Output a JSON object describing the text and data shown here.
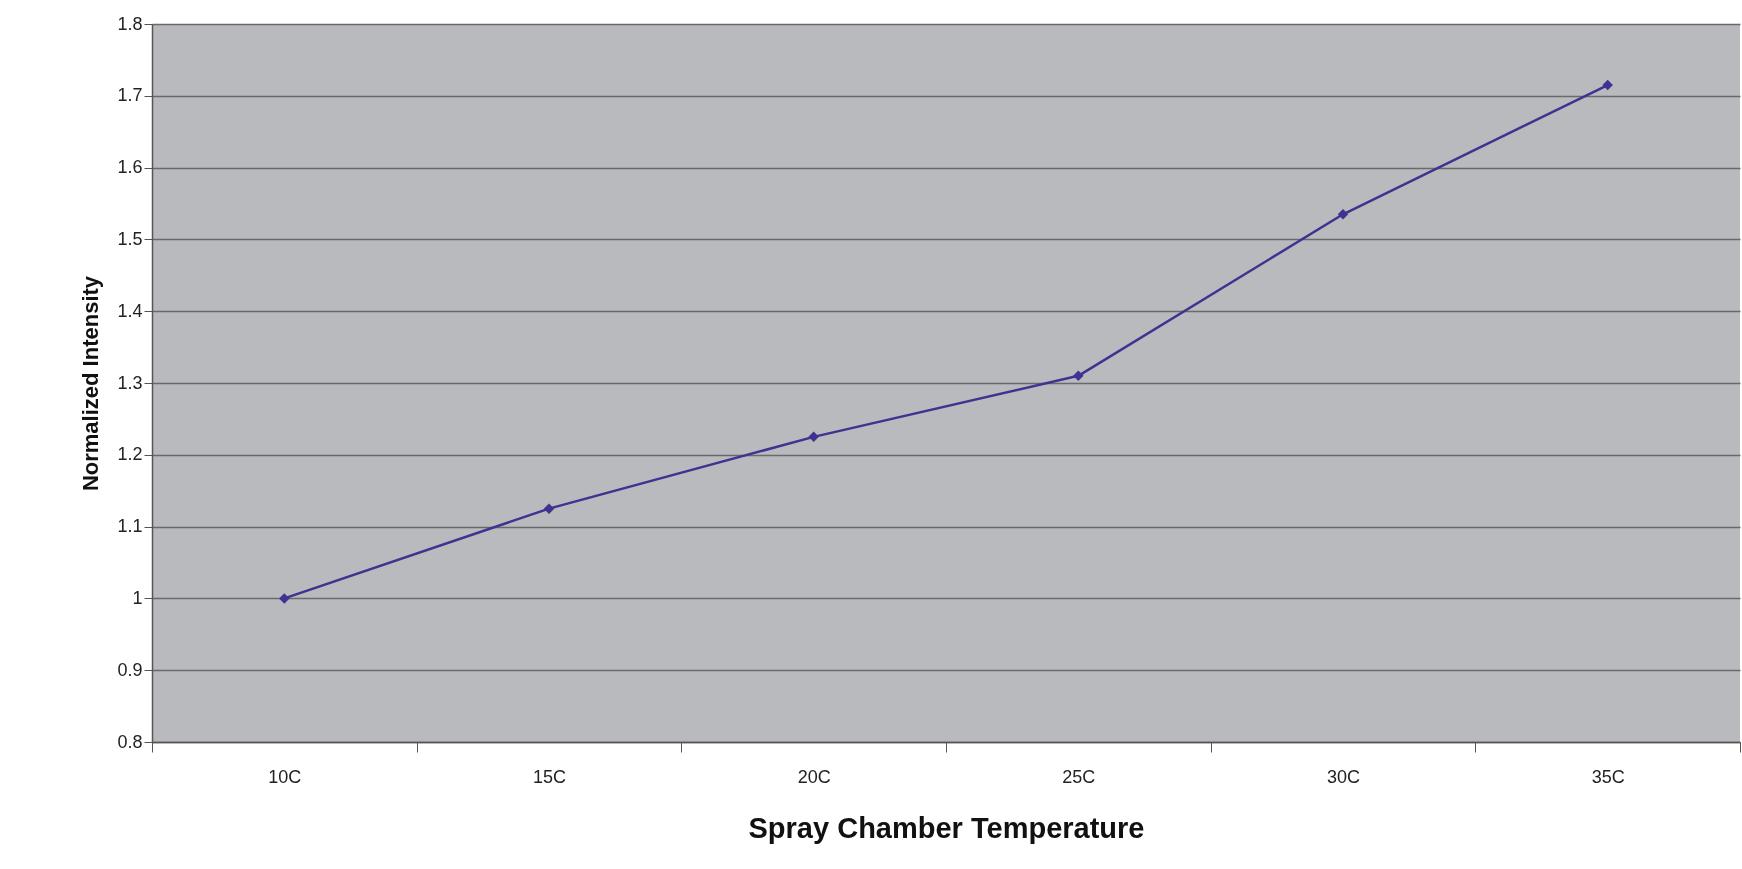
{
  "chart_data": {
    "type": "line",
    "xlabel": "Spray Chamber Temperature",
    "ylabel": "Normalized Intensity",
    "categories": [
      "10C",
      "15C",
      "20C",
      "25C",
      "30C",
      "35C"
    ],
    "series": [
      {
        "color": "#3d3391",
        "values": [
          1.0,
          1.125,
          1.225,
          1.31,
          1.535,
          1.715
        ]
      }
    ],
    "ylim": [
      0.8,
      1.8
    ],
    "yticks": [
      0.8,
      0.9,
      1,
      1.1,
      1.2,
      1.3,
      1.4,
      1.5,
      1.6,
      1.7,
      1.8
    ],
    "grid": "y",
    "legend": false,
    "marker": "diamond",
    "line_style": "solid"
  }
}
